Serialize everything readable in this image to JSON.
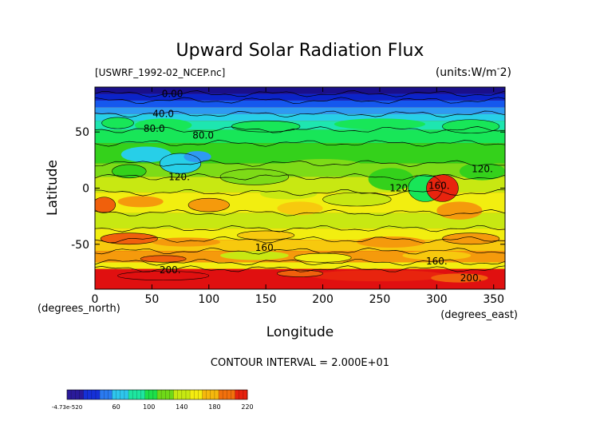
{
  "chart_data": {
    "type": "contour",
    "title": "Upward Solar Radiation Flux",
    "file_label": "[USWRF_1992-02_NCEP.nc]",
    "units_label": "(units:W/m^-2)",
    "units_text": "(units:W/m",
    "units_sup": "-",
    "units_tail": "2)",
    "xlabel": "Longitude",
    "ylabel": "Latitude",
    "x_unit_label": "(degrees_east)",
    "y_unit_label": "(degrees_north)",
    "xlim": [
      0,
      360
    ],
    "ylim": [
      -90,
      90
    ],
    "xticks": [
      0,
      50,
      100,
      150,
      200,
      250,
      300,
      350
    ],
    "yticks": [
      -50,
      0,
      50
    ],
    "contour_interval_text": "CONTOUR INTERVAL = 2.000E+01",
    "contour_labels": [
      {
        "text": "0.00",
        "x": 68,
        "y": 84
      },
      {
        "text": "40.0",
        "x": 60,
        "y": 66
      },
      {
        "text": "80.0",
        "x": 52,
        "y": 53
      },
      {
        "text": "80.0",
        "x": 95,
        "y": 47
      },
      {
        "text": "120.",
        "x": 74,
        "y": 10
      },
      {
        "text": "120.",
        "x": 268,
        "y": 0
      },
      {
        "text": "160.",
        "x": 302,
        "y": 2
      },
      {
        "text": "120.",
        "x": 340,
        "y": 17
      },
      {
        "text": "160.",
        "x": 150,
        "y": -53
      },
      {
        "text": "200.",
        "x": 66,
        "y": -73
      },
      {
        "text": "160.",
        "x": 300,
        "y": -65
      },
      {
        "text": "200.",
        "x": 330,
        "y": -80
      }
    ],
    "colorbar": {
      "min_label": "-4.73e-520",
      "tick_labels": [
        "60",
        "100",
        "140",
        "180",
        "220"
      ],
      "tick_values": [
        60,
        100,
        140,
        180,
        220
      ],
      "range": [
        0,
        220
      ]
    },
    "field_description": "Zonal bands: ~0 near 90N rising to ~80 at 50N, ~100-140 across tropics with 160+ maxima near 300E/0, ~160-180 at 50S, >200 over Antarctica.",
    "band_colors": [
      "#1a0f8a",
      "#0b24c9",
      "#1558ee",
      "#2e9af2",
      "#27cfe8",
      "#1ee6b0",
      "#18e658",
      "#34d11b",
      "#7ddb17",
      "#c8e812",
      "#f2ee10",
      "#f7c90e",
      "#f59a0c",
      "#f0600c",
      "#e8240e",
      "#e01010"
    ]
  }
}
